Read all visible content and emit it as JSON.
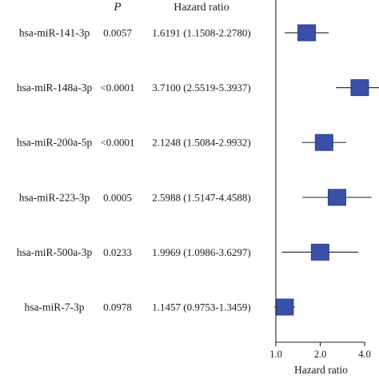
{
  "chart_data": {
    "type": "forest",
    "header": {
      "p_label": "P",
      "hr_label": "Hazard ratio"
    },
    "rows": [
      {
        "label": "hsa-miR-141-3p",
        "p": "0.0057",
        "hr_text": "1.6191 (1.1508-2.2780)",
        "hr": 1.6191,
        "lower": 1.1508,
        "upper": 2.278
      },
      {
        "label": "hsa-miR-148a-3p",
        "p": "<0.0001",
        "hr_text": "3.7100 (2.5519-5.3937)",
        "hr": 3.71,
        "lower": 2.5519,
        "upper": 5.3937
      },
      {
        "label": "hsa-miR-200a-5p",
        "p": "<0.0001",
        "hr_text": "2.1248 (1.5084-2.9932)",
        "hr": 2.1248,
        "lower": 1.5084,
        "upper": 2.9932
      },
      {
        "label": "hsa-miR-223-3p",
        "p": "0.0005",
        "hr_text": "2.5988 (1.5147-4.4588)",
        "hr": 2.5988,
        "lower": 1.5147,
        "upper": 4.4588
      },
      {
        "label": "hsa-miR-500a-3p",
        "p": "0.0233",
        "hr_text": "1.9969 (1.0986-3.6297)",
        "hr": 1.9969,
        "lower": 1.0986,
        "upper": 3.6297
      },
      {
        "label": "hsa-miR-7-3p",
        "p": "0.0978",
        "hr_text": "1.1457 (0.9753-1.3459)",
        "hr": 1.1457,
        "lower": 0.9753,
        "upper": 1.3459
      }
    ],
    "x_axis": {
      "scale": "log2",
      "ticks": [
        {
          "value": 1.0,
          "label": "1.0"
        },
        {
          "value": 2.0,
          "label": "2.0"
        },
        {
          "value": 4.0,
          "label": "4.0"
        }
      ],
      "title": "Hazard ratio"
    },
    "colors": {
      "box": "#3a4fa8",
      "box_stroke": "#2a3c8c",
      "line": "#333333"
    }
  }
}
